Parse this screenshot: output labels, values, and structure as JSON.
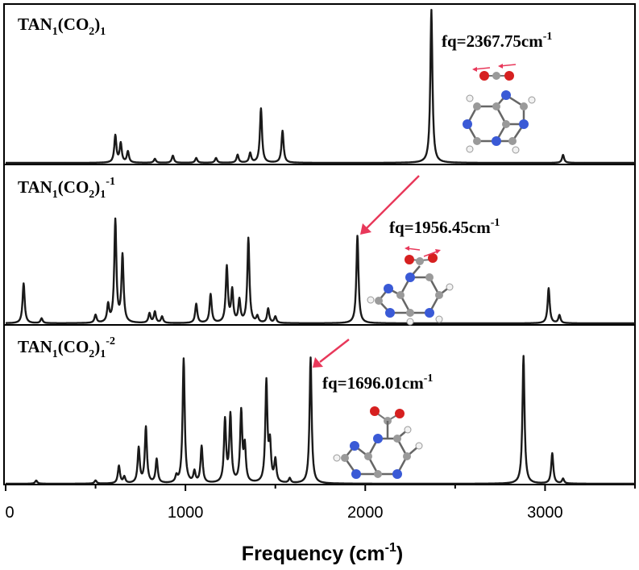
{
  "colors": {
    "spectrum": "#1a1a1a",
    "arrow": "#e8385a",
    "oxygen": "#d62020",
    "carbon": "#9a9a9a",
    "nitrogen": "#3a5ad6",
    "hydrogen": "#f2f2f2"
  },
  "chart_data": {
    "type": "line",
    "xlabel": "Frequency (cm",
    "xlabel_sup": "-1",
    "xlabel_close": ")",
    "xlim": [
      0,
      3500
    ],
    "xticks": [
      0,
      1000,
      2000,
      3000
    ],
    "xtick_labels": [
      "0",
      "1000",
      "2000",
      "3000"
    ],
    "panels": [
      {
        "label": {
          "main": "TAN",
          "s1": "1",
          "mid": "(CO",
          "s2": "2",
          "close": ")",
          "s3": "1",
          "charge": ""
        },
        "annotation": {
          "main": "fq=2367.75cm",
          "sup": "-1"
        },
        "annotated_frequency": 2367.75,
        "arrow": false,
        "peaks": [
          {
            "x": 610,
            "y": 0.17
          },
          {
            "x": 640,
            "y": 0.12
          },
          {
            "x": 680,
            "y": 0.07
          },
          {
            "x": 830,
            "y": 0.025
          },
          {
            "x": 930,
            "y": 0.045
          },
          {
            "x": 1060,
            "y": 0.03
          },
          {
            "x": 1170,
            "y": 0.03
          },
          {
            "x": 1290,
            "y": 0.05
          },
          {
            "x": 1360,
            "y": 0.06
          },
          {
            "x": 1420,
            "y": 0.34
          },
          {
            "x": 1540,
            "y": 0.2
          },
          {
            "x": 2367.75,
            "y": 0.96
          },
          {
            "x": 3100,
            "y": 0.05
          }
        ]
      },
      {
        "label": {
          "main": "TAN",
          "s1": "1",
          "mid": "(CO",
          "s2": "2",
          "close": ")",
          "s3": "1",
          "charge": "-1"
        },
        "annotation": {
          "main": "fq=1956.45cm",
          "sup": "-1"
        },
        "annotated_frequency": 1956.45,
        "arrow": true,
        "peaks": [
          {
            "x": 100,
            "y": 0.25
          },
          {
            "x": 200,
            "y": 0.03
          },
          {
            "x": 500,
            "y": 0.05
          },
          {
            "x": 570,
            "y": 0.11
          },
          {
            "x": 610,
            "y": 0.64
          },
          {
            "x": 650,
            "y": 0.42
          },
          {
            "x": 800,
            "y": 0.06
          },
          {
            "x": 830,
            "y": 0.07
          },
          {
            "x": 870,
            "y": 0.04
          },
          {
            "x": 1060,
            "y": 0.12
          },
          {
            "x": 1140,
            "y": 0.18
          },
          {
            "x": 1230,
            "y": 0.35
          },
          {
            "x": 1260,
            "y": 0.2
          },
          {
            "x": 1300,
            "y": 0.14
          },
          {
            "x": 1350,
            "y": 0.53
          },
          {
            "x": 1400,
            "y": 0.04
          },
          {
            "x": 1460,
            "y": 0.09
          },
          {
            "x": 1500,
            "y": 0.04
          },
          {
            "x": 1956.45,
            "y": 0.55
          },
          {
            "x": 3020,
            "y": 0.22
          },
          {
            "x": 3080,
            "y": 0.05
          }
        ]
      },
      {
        "label": {
          "main": "TAN",
          "s1": "1",
          "mid": "(CO",
          "s2": "2",
          "close": ")",
          "s3": "1",
          "charge": "-2"
        },
        "annotation": {
          "main": "fq=1696.01cm",
          "sup": "-1"
        },
        "annotated_frequency": 1696.01,
        "arrow": true,
        "peaks": [
          {
            "x": 170,
            "y": 0.02
          },
          {
            "x": 500,
            "y": 0.02
          },
          {
            "x": 630,
            "y": 0.11
          },
          {
            "x": 660,
            "y": 0.04
          },
          {
            "x": 740,
            "y": 0.22
          },
          {
            "x": 780,
            "y": 0.35
          },
          {
            "x": 840,
            "y": 0.15
          },
          {
            "x": 950,
            "y": 0.04
          },
          {
            "x": 990,
            "y": 0.78
          },
          {
            "x": 1050,
            "y": 0.07
          },
          {
            "x": 1090,
            "y": 0.23
          },
          {
            "x": 1220,
            "y": 0.39
          },
          {
            "x": 1250,
            "y": 0.42
          },
          {
            "x": 1310,
            "y": 0.44
          },
          {
            "x": 1330,
            "y": 0.22
          },
          {
            "x": 1450,
            "y": 0.63
          },
          {
            "x": 1470,
            "y": 0.23
          },
          {
            "x": 1500,
            "y": 0.14
          },
          {
            "x": 1580,
            "y": 0.03
          },
          {
            "x": 1696.01,
            "y": 0.79
          },
          {
            "x": 2880,
            "y": 0.8
          },
          {
            "x": 3040,
            "y": 0.19
          },
          {
            "x": 3100,
            "y": 0.03
          }
        ]
      }
    ]
  }
}
